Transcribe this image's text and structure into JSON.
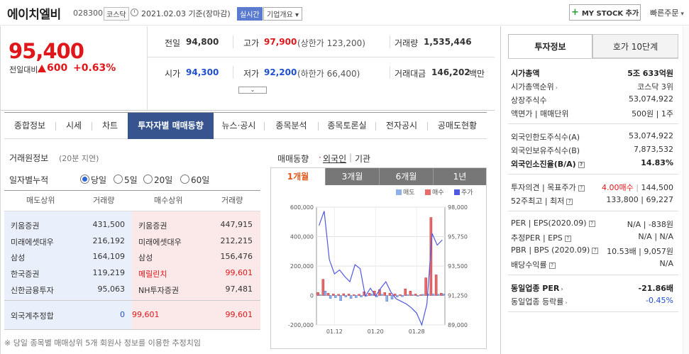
{
  "header": {
    "stock_name": "에이치엘비",
    "stock_code": "028300",
    "market": "코스닥",
    "date_text": "2021.02.03  기준(장마감)",
    "realtime_label": "실시간",
    "overview_label": "기업개요 ▾",
    "mystock_label": "MY STOCK 추가",
    "quick_order_label": "빠른주문"
  },
  "price": {
    "current": "95,400",
    "change_label": "전일대비",
    "change_value": "600",
    "change_rate": "+0.63%",
    "colors": {
      "up": "#e0171a",
      "down": "#1f4fd1"
    }
  },
  "summary": {
    "prev_close_label": "전일",
    "prev_close": "94,800",
    "high_label": "고가",
    "high": "97,900",
    "upper_limit": "(상한가 123,200)",
    "volume_label": "거래량",
    "volume": "1,535,446",
    "open_label": "시가",
    "open": "94,300",
    "low_label": "저가",
    "low": "92,200",
    "lower_limit": "(하한가 66,400)",
    "amount_label": "거래대금",
    "amount": "146,202",
    "amount_unit": "백만"
  },
  "tabs": [
    {
      "label": "종합정보"
    },
    {
      "label": "시세"
    },
    {
      "label": "차트"
    },
    {
      "label": "투자자별 매매동향"
    },
    {
      "label": "뉴스·공시"
    },
    {
      "label": "종목분석"
    },
    {
      "label": "종목토론실"
    },
    {
      "label": "전자공시"
    },
    {
      "label": "공매도현황"
    }
  ],
  "broker": {
    "title": "거래원정보",
    "note": "(20분 지연)",
    "period_label": "일자별누적",
    "periods": [
      {
        "label": "당일"
      },
      {
        "label": "5일"
      },
      {
        "label": "20일"
      },
      {
        "label": "60일"
      }
    ],
    "headers": {
      "sell": "매도상위",
      "sell_vol": "거래량",
      "buy": "매수상위",
      "buy_vol": "거래량"
    },
    "rows": [
      {
        "sell": "키움증권",
        "sell_vol": "431,500",
        "buy": "키움증권",
        "buy_vol": "447,915"
      },
      {
        "sell": "미래에셋대우",
        "sell_vol": "216,192",
        "buy": "미래에셋대우",
        "buy_vol": "212,215"
      },
      {
        "sell": "삼성",
        "sell_vol": "164,109",
        "buy": "삼성",
        "buy_vol": "156,476"
      },
      {
        "sell": "한국증권",
        "sell_vol": "119,219",
        "buy": "메릴린치",
        "buy_vol": "99,601"
      },
      {
        "sell": "신한금융투자",
        "sell_vol": "95,063",
        "buy": "NH투자증권",
        "buy_vol": "97,481"
      }
    ],
    "foreign": {
      "label": "외국계추정합",
      "sell": "0",
      "mid": "99,601",
      "buy": "99,601"
    },
    "footnote": "※ 당일 종목별 매매상위 5개 회원사 정보를 이용한 추정치임"
  },
  "chart_panel": {
    "title": "매매동향",
    "foreign_label": "외국인",
    "inst_label": "기관",
    "separator": "|",
    "period_tabs": [
      {
        "label": "1개월"
      },
      {
        "label": "3개월"
      },
      {
        "label": "6개월"
      },
      {
        "label": "1년"
      }
    ]
  },
  "chart_data": {
    "type": "bar",
    "legend": [
      "매도",
      "매수",
      "주가"
    ],
    "legend_position": "top-right",
    "series_colors": {
      "sell": "#8fb0e8",
      "buy": "#e86a6a",
      "price": "#5058e0"
    },
    "x_ticks": [
      "01.12",
      "01.20",
      "01.28"
    ],
    "y_left_ticks": [
      "600,000",
      "400,000",
      "200,000",
      "0",
      "-200,000"
    ],
    "y_left_range": [
      -200000,
      600000
    ],
    "y_right_ticks": [
      "98,000",
      "95,750",
      "93,500",
      "91,250",
      "89,000"
    ],
    "y_right_range": [
      89000,
      98000
    ],
    "buy": [
      20000,
      110000,
      15000,
      10000,
      8000,
      12000,
      10000,
      5000,
      8000,
      25000,
      15000,
      30000,
      40000,
      20000,
      15000,
      10000,
      5000,
      45000,
      30000,
      10000,
      5000,
      120000,
      530000,
      140000,
      15000
    ],
    "sell": [
      5000,
      30000,
      -20000,
      -15000,
      -35000,
      -10000,
      -20000,
      -15000,
      -10000,
      -5000,
      10000,
      -10000,
      8000,
      -40000,
      -25000,
      -10000,
      -8000,
      5000,
      5000,
      -5000,
      8000,
      10000,
      10000,
      8000,
      10000
    ],
    "price": [
      96600,
      97700,
      94000,
      92900,
      93200,
      92700,
      92300,
      93600,
      93300,
      91200,
      91800,
      91200,
      91800,
      92300,
      91500,
      91000,
      90800,
      90600,
      90300,
      89900,
      89000,
      90600,
      96000,
      95100,
      95500
    ]
  },
  "invest_info": {
    "tab1": "투자정보",
    "tab2": "호가 10단계",
    "market_cap_label": "시가총액",
    "market_cap": "5조 633억원",
    "market_cap_rank_label": "시가총액순위",
    "market_cap_rank": "코스닥 3위",
    "shares_label": "상장주식수",
    "shares": "53,074,922",
    "par_label": "액면가 | 매매단위",
    "par": "500원 | 1주",
    "foreign_limit_label": "외국인한도주식수(A)",
    "foreign_limit": "53,074,922",
    "foreign_hold_label": "외국인보유주식수(B)",
    "foreign_hold": "7,873,532",
    "foreign_ratio_label": "외국인소진율(B/A)",
    "foreign_ratio": "14.83%",
    "opinion_label": "투자의견 | 목표주가",
    "opinion": "4.00매수",
    "target": "144,500",
    "w52_label": "52주최고 | 최저",
    "w52": "133,800 | 69,227",
    "per_label": "PER | EPS(2020.09)",
    "per": "N/A | -838원",
    "est_per_label": "추정PER | EPS",
    "est_per": "N/A | N/A",
    "pbr_label": "PBR | BPS (2020.09)",
    "pbr": "10.53배 | 9,057원",
    "div_label": "배당수익률",
    "div": "N/A",
    "ind_per_label": "동일업종 PER",
    "ind_per": "-21.86배",
    "ind_rate_label": "동일업종 등락률",
    "ind_rate": "-0.45%"
  }
}
